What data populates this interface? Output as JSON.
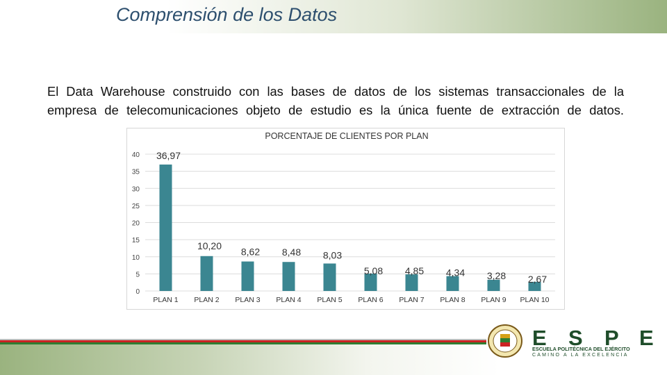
{
  "slide": {
    "title": "Comprensión de los Datos",
    "paragraph_lines": [
      "El Data Warehouse construido con las bases de datos de los sistemas transaccionales de la",
      "empresa de telecomunicaciones objeto de estudio es la única fuente de extracción de datos."
    ]
  },
  "logo": {
    "letters": [
      "E",
      "S",
      "P",
      "E"
    ],
    "line1": "ESCUELA POLITÉCNICA DEL EJÉRCITO",
    "line2": "CAMINO A LA EXCELENCIA"
  },
  "colors": {
    "bar": "#3b8691",
    "title": "#2d4f6e",
    "band_green": "#9ab37f",
    "stripe_red": "#cc2222",
    "stripe_green": "#2e7d32"
  },
  "chart_data": {
    "type": "bar",
    "title": "PORCENTAJE DE CLIENTES POR PLAN",
    "categories": [
      "PLAN 1",
      "PLAN 2",
      "PLAN 3",
      "PLAN 4",
      "PLAN 5",
      "PLAN 6",
      "PLAN 7",
      "PLAN 8",
      "PLAN 9",
      "PLAN 10"
    ],
    "values": [
      36.97,
      10.2,
      8.62,
      8.48,
      8.03,
      5.08,
      4.85,
      4.34,
      3.28,
      2.67
    ],
    "data_labels": [
      "36,97",
      "10,20",
      "8,62",
      "8,48",
      "8,03",
      "5,08",
      "4,85",
      "4,34",
      "3,28",
      "2,67"
    ],
    "yticks": [
      0,
      5,
      10,
      15,
      20,
      25,
      30,
      35,
      40
    ],
    "ylim": [
      0,
      40
    ],
    "xlabel": "",
    "ylabel": "",
    "grid": true,
    "legend": "none"
  }
}
